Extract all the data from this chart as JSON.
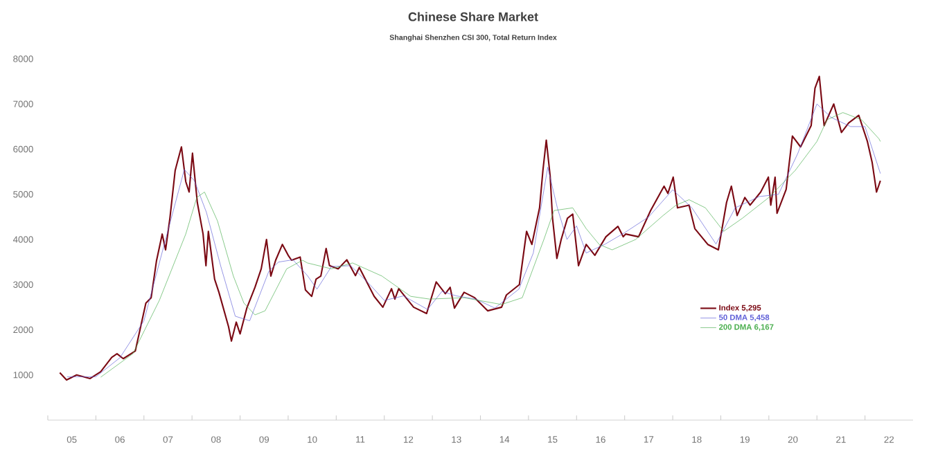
{
  "chart_data": {
    "type": "line",
    "title": "Chinese Share Market",
    "subtitle": "Shanghai Shenzhen CSI 300, Total Return Index",
    "xlim": [
      4.5,
      22.5
    ],
    "ylim": [
      0,
      8000
    ],
    "yticks": [
      1000,
      2000,
      3000,
      4000,
      5000,
      6000,
      7000,
      8000
    ],
    "xticks": [
      {
        "value": 4.5,
        "label": null
      },
      {
        "value": 5,
        "label": "05"
      },
      {
        "value": 5.5,
        "label": null
      },
      {
        "value": 6,
        "label": "06"
      },
      {
        "value": 6.5,
        "label": null
      },
      {
        "value": 7,
        "label": "07"
      },
      {
        "value": 7.5,
        "label": null
      },
      {
        "value": 8,
        "label": "08"
      },
      {
        "value": 8.5,
        "label": null
      },
      {
        "value": 9,
        "label": "09"
      },
      {
        "value": 9.5,
        "label": null
      },
      {
        "value": 10,
        "label": "10"
      },
      {
        "value": 10.5,
        "label": null
      },
      {
        "value": 11,
        "label": "11"
      },
      {
        "value": 11.5,
        "label": null
      },
      {
        "value": 12,
        "label": "12"
      },
      {
        "value": 12.5,
        "label": null
      },
      {
        "value": 13,
        "label": "13"
      },
      {
        "value": 13.5,
        "label": null
      },
      {
        "value": 14,
        "label": "14"
      },
      {
        "value": 14.5,
        "label": null
      },
      {
        "value": 15,
        "label": "15"
      },
      {
        "value": 15.5,
        "label": null
      },
      {
        "value": 16,
        "label": "16"
      },
      {
        "value": 16.5,
        "label": null
      },
      {
        "value": 17,
        "label": "17"
      },
      {
        "value": 17.5,
        "label": null
      },
      {
        "value": 18,
        "label": "18"
      },
      {
        "value": 18.5,
        "label": null
      },
      {
        "value": 19,
        "label": "19"
      },
      {
        "value": 19.5,
        "label": null
      },
      {
        "value": 20,
        "label": "20"
      },
      {
        "value": 20.5,
        "label": null
      },
      {
        "value": 21,
        "label": "21"
      },
      {
        "value": 21.5,
        "label": null
      },
      {
        "value": 22,
        "label": "22"
      }
    ],
    "grid": false,
    "legend": "right",
    "marker": "none",
    "line_style": "solid",
    "series": [
      {
        "name": "Index 5,295",
        "color": "#7b0a14",
        "x": [
          4.75,
          4.89,
          5.1,
          5.38,
          5.6,
          5.83,
          5.94,
          6.07,
          6.32,
          6.54,
          6.65,
          6.76,
          6.88,
          6.95,
          7.04,
          7.15,
          7.28,
          7.37,
          7.44,
          7.51,
          7.61,
          7.73,
          7.79,
          7.84,
          7.97,
          8.06,
          8.26,
          8.32,
          8.42,
          8.5,
          8.64,
          8.81,
          8.94,
          9.05,
          9.14,
          9.24,
          9.38,
          9.5,
          9.57,
          9.75,
          9.86,
          9.99,
          10.08,
          10.18,
          10.29,
          10.36,
          10.54,
          10.72,
          10.9,
          10.98,
          11.29,
          11.47,
          11.65,
          11.72,
          11.8,
          12.11,
          12.38,
          12.58,
          12.77,
          12.87,
          12.96,
          13.16,
          13.38,
          13.65,
          13.94,
          14.04,
          14.31,
          14.46,
          14.57,
          14.73,
          14.8,
          14.87,
          14.95,
          15.0,
          15.09,
          15.18,
          15.31,
          15.42,
          15.54,
          15.7,
          15.88,
          16.11,
          16.36,
          16.47,
          16.52,
          16.79,
          17.04,
          17.32,
          17.4,
          17.51,
          17.6,
          17.84,
          17.96,
          18.23,
          18.45,
          18.62,
          18.72,
          18.84,
          19.0,
          19.11,
          19.33,
          19.49,
          19.54,
          19.63,
          19.67,
          19.86,
          19.99,
          20.16,
          20.38,
          20.46,
          20.55,
          20.65,
          20.85,
          21.01,
          21.16,
          21.37,
          21.55,
          21.65,
          21.74,
          21.82
        ],
        "values": [
          1050,
          890,
          1000,
          920,
          1070,
          1390,
          1470,
          1360,
          1530,
          2590,
          2710,
          3520,
          4120,
          3770,
          4470,
          5530,
          6050,
          5280,
          5050,
          5910,
          4820,
          4120,
          3420,
          4180,
          3120,
          2830,
          2070,
          1750,
          2170,
          1910,
          2480,
          2940,
          3350,
          4000,
          3190,
          3540,
          3890,
          3650,
          3540,
          3610,
          2880,
          2740,
          3120,
          3190,
          3800,
          3420,
          3350,
          3550,
          3200,
          3380,
          2740,
          2500,
          2910,
          2680,
          2910,
          2500,
          2360,
          3060,
          2800,
          2940,
          2480,
          2830,
          2710,
          2420,
          2500,
          2770,
          3000,
          4180,
          3890,
          4700,
          5530,
          6200,
          5410,
          4470,
          3580,
          4000,
          4470,
          4560,
          3420,
          3890,
          3650,
          4060,
          4290,
          4060,
          4120,
          4060,
          4640,
          5180,
          5020,
          5380,
          4700,
          4760,
          4240,
          3890,
          3770,
          4820,
          5180,
          4530,
          4930,
          4760,
          5050,
          5380,
          4760,
          5380,
          4580,
          5110,
          6290,
          6050,
          6520,
          7350,
          7610,
          6520,
          7000,
          6370,
          6580,
          6750,
          6170,
          5700,
          5050,
          5300
        ]
      },
      {
        "name": "50 DMA 5,458",
        "color": "#6060d8",
        "x": [
          4.9,
          5.5,
          6.0,
          6.5,
          6.9,
          7.34,
          7.55,
          7.8,
          8.1,
          8.4,
          8.7,
          9.1,
          9.3,
          9.6,
          9.9,
          10.1,
          10.4,
          10.8,
          11.2,
          11.5,
          11.9,
          12.4,
          12.7,
          13.0,
          13.4,
          13.8,
          14.3,
          14.6,
          14.9,
          15.1,
          15.3,
          15.5,
          15.7,
          16.1,
          16.5,
          17.0,
          17.5,
          17.9,
          18.4,
          18.8,
          19.3,
          19.7,
          20.1,
          20.5,
          20.8,
          21.2,
          21.5,
          21.82
        ],
        "values": [
          960,
          960,
          1380,
          2200,
          3800,
          5550,
          5300,
          4600,
          3400,
          2300,
          2200,
          3300,
          3500,
          3550,
          3200,
          2900,
          3400,
          3420,
          3000,
          2650,
          2750,
          2450,
          2850,
          2750,
          2680,
          2480,
          2900,
          3700,
          5600,
          4700,
          4000,
          4300,
          3700,
          3900,
          4150,
          4500,
          5100,
          4700,
          3900,
          4700,
          4950,
          5000,
          5900,
          7000,
          6700,
          6500,
          6500,
          5460
        ]
      },
      {
        "name": "200 DMA 6,167",
        "color": "#4caf50",
        "x": [
          5.6,
          6.27,
          6.82,
          7.37,
          7.6,
          7.76,
          8.03,
          8.36,
          8.58,
          8.81,
          9.02,
          9.47,
          9.8,
          9.9,
          10.4,
          10.84,
          11.45,
          12.05,
          12.44,
          13.16,
          13.94,
          14.37,
          14.82,
          15.03,
          15.42,
          15.7,
          15.97,
          16.24,
          16.73,
          17.3,
          17.57,
          17.84,
          18.18,
          18.56,
          18.95,
          19.5,
          20.05,
          20.5,
          20.71,
          21.04,
          21.43,
          21.79,
          21.82
        ],
        "values": [
          950,
          1470,
          2650,
          4120,
          4930,
          5050,
          4410,
          3190,
          2590,
          2330,
          2420,
          3350,
          3540,
          3480,
          3350,
          3480,
          3190,
          2740,
          2680,
          2710,
          2560,
          2710,
          4000,
          4640,
          4700,
          4240,
          3890,
          3770,
          4000,
          4530,
          4760,
          4880,
          4700,
          4180,
          4470,
          4930,
          5530,
          6170,
          6650,
          6810,
          6650,
          6230,
          6170
        ]
      }
    ]
  }
}
